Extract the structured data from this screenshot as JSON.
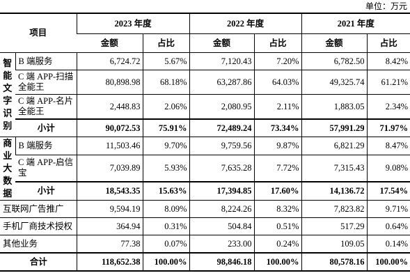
{
  "unit": "单位：万元",
  "header": {
    "item": "项目",
    "years": [
      "2023 年度",
      "2022 年度",
      "2021 年度"
    ],
    "columns": [
      "金额",
      "占比",
      "金额",
      "占比",
      "金额",
      "占比"
    ]
  },
  "groups": [
    {
      "name": "智能文字识别",
      "rows": [
        {
          "label": "B 端服务",
          "cells": [
            "6,724.72",
            "5.67%",
            "7,120.43",
            "7.20%",
            "6,782.50",
            "8.42%"
          ]
        },
        {
          "label": "C 端 APP-扫描全能王",
          "cells": [
            "80,898.98",
            "68.18%",
            "63,287.86",
            "64.03%",
            "49,325.74",
            "61.21%"
          ]
        },
        {
          "label": "C 端 APP-名片全能王",
          "cells": [
            "2,448.83",
            "2.06%",
            "2,080.95",
            "2.11%",
            "1,883.05",
            "2.34%"
          ]
        },
        {
          "label": "小计",
          "bold": true,
          "cells": [
            "90,072.53",
            "75.91%",
            "72,489.24",
            "73.34%",
            "57,991.29",
            "71.97%"
          ]
        }
      ]
    },
    {
      "name": "商业大数据",
      "rows": [
        {
          "label": "B 端服务",
          "cells": [
            "11,503.46",
            "9.70%",
            "9,759.56",
            "9.87%",
            "6,821.29",
            "8.47%"
          ]
        },
        {
          "label": "C 端 APP-启信宝",
          "cells": [
            "7,039.89",
            "5.93%",
            "7,635.28",
            "7.72%",
            "7,315.43",
            "9.08%"
          ]
        },
        {
          "label": "小计",
          "bold": true,
          "cells": [
            "18,543.35",
            "15.63%",
            "17,394.85",
            "17.60%",
            "14,136.72",
            "17.54%"
          ]
        }
      ]
    }
  ],
  "rows": [
    {
      "label": "互联网广告推广",
      "cells": [
        "9,594.19",
        "8.09%",
        "8,224.26",
        "8.32%",
        "7,823.82",
        "9.71%"
      ]
    },
    {
      "label": "手机厂商技术授权",
      "cells": [
        "364.94",
        "0.31%",
        "504.84",
        "0.51%",
        "517.29",
        "0.64%"
      ]
    },
    {
      "label": "其他业务",
      "cells": [
        "77.38",
        "0.07%",
        "233.00",
        "0.24%",
        "109.05",
        "0.14%"
      ]
    },
    {
      "label": "合计",
      "bold": true,
      "cells": [
        "118,652.38",
        "100.00%",
        "98,846.18",
        "100.00%",
        "80,578.16",
        "100.00%"
      ]
    }
  ]
}
